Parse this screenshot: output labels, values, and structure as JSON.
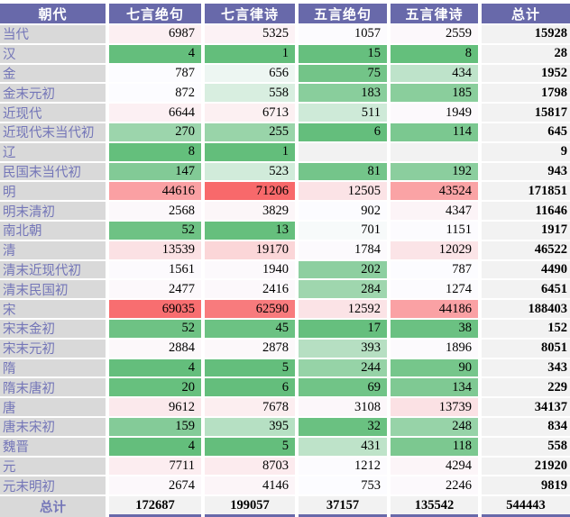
{
  "chart_data": {
    "type": "table",
    "columns": [
      "朝代",
      "七言绝句",
      "七言律诗",
      "五言绝句",
      "五言律诗",
      "总计"
    ],
    "rows": [
      {
        "label": "当代",
        "values": [
          6987,
          5325,
          1057,
          2559
        ],
        "total": 15928
      },
      {
        "label": "汉",
        "values": [
          4,
          1,
          15,
          8
        ],
        "total": 28
      },
      {
        "label": "金",
        "values": [
          787,
          656,
          75,
          434
        ],
        "total": 1952
      },
      {
        "label": "金末元初",
        "values": [
          872,
          558,
          183,
          185
        ],
        "total": 1798
      },
      {
        "label": "近现代",
        "values": [
          6644,
          6713,
          511,
          1949
        ],
        "total": 15817
      },
      {
        "label": "近现代末当代初",
        "values": [
          270,
          255,
          6,
          114
        ],
        "total": 645
      },
      {
        "label": "辽",
        "values": [
          8,
          1,
          null,
          null
        ],
        "total": 9
      },
      {
        "label": "民国末当代初",
        "values": [
          147,
          523,
          81,
          192
        ],
        "total": 943
      },
      {
        "label": "明",
        "values": [
          44616,
          71206,
          12505,
          43524
        ],
        "total": 171851
      },
      {
        "label": "明末清初",
        "values": [
          2568,
          3829,
          902,
          4347
        ],
        "total": 11646
      },
      {
        "label": "南北朝",
        "values": [
          52,
          13,
          701,
          1151
        ],
        "total": 1917
      },
      {
        "label": "清",
        "values": [
          13539,
          19170,
          1784,
          12029
        ],
        "total": 46522
      },
      {
        "label": "清末近现代初",
        "values": [
          1561,
          1940,
          202,
          787
        ],
        "total": 4490
      },
      {
        "label": "清末民国初",
        "values": [
          2477,
          2416,
          284,
          1274
        ],
        "total": 6451
      },
      {
        "label": "宋",
        "values": [
          69035,
          62590,
          12592,
          44186
        ],
        "total": 188403
      },
      {
        "label": "宋末金初",
        "values": [
          52,
          45,
          17,
          38
        ],
        "total": 152
      },
      {
        "label": "宋末元初",
        "values": [
          2884,
          2878,
          393,
          1896
        ],
        "total": 8051
      },
      {
        "label": "隋",
        "values": [
          4,
          5,
          244,
          90
        ],
        "total": 343
      },
      {
        "label": "隋末唐初",
        "values": [
          20,
          6,
          69,
          134
        ],
        "total": 229
      },
      {
        "label": "唐",
        "values": [
          9612,
          7678,
          3108,
          13739
        ],
        "total": 34137
      },
      {
        "label": "唐末宋初",
        "values": [
          159,
          395,
          32,
          248
        ],
        "total": 834
      },
      {
        "label": "魏晋",
        "values": [
          4,
          5,
          431,
          118
        ],
        "total": 558
      },
      {
        "label": "元",
        "values": [
          7711,
          8703,
          1212,
          4294
        ],
        "total": 21920
      },
      {
        "label": "元末明初",
        "values": [
          2674,
          4146,
          753,
          2246
        ],
        "total": 9819
      }
    ],
    "totals": {
      "label": "总计",
      "values": [
        172687,
        199057,
        37157,
        135542
      ],
      "grand_total": 544443
    },
    "conditional_formatting": {
      "description": "3-color scale on data cells: min=green, 50th percentile=white, max=red",
      "midpoint": "percentile-50"
    }
  },
  "colors": {
    "header_bg": "#6869aa",
    "header_text": "#ffffff",
    "label_bg": "#d9d9d9",
    "label_text": "#7476b8",
    "total_bg": "#f2f2f2",
    "empty_cell_bg": "#f2f2f2",
    "scale_low": "#63be7b",
    "scale_mid": "#fcfcff",
    "scale_high": "#f8696b",
    "underline": "#6869aa"
  }
}
